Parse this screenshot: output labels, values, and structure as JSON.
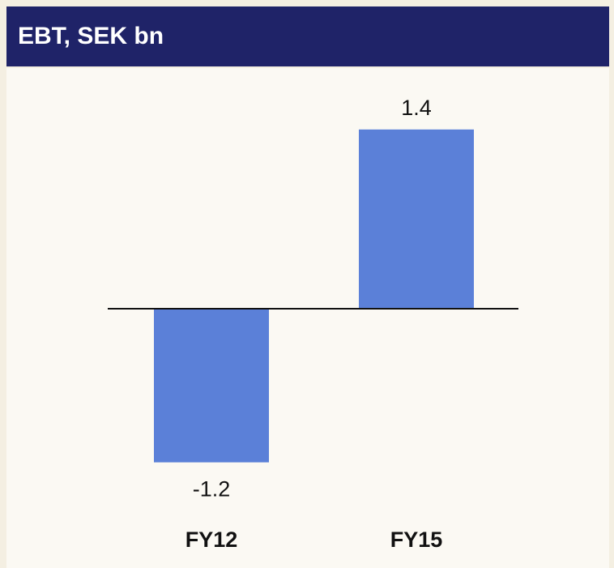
{
  "chart_data": {
    "type": "bar",
    "title": "EBT, SEK bn",
    "categories": [
      "FY12",
      "FY15"
    ],
    "values": [
      -1.2,
      1.4
    ],
    "color": "#5b80d8"
  }
}
